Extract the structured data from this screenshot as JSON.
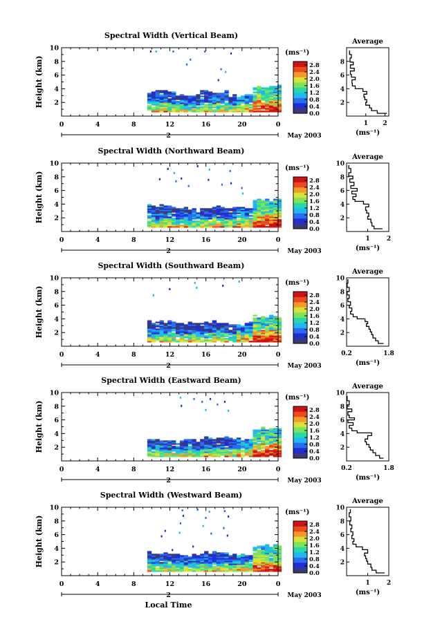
{
  "figure": {
    "month_label": "May 2003",
    "date_label": "2",
    "xlabel": "Local Time",
    "colorbar_unit": "(ms⁻¹)",
    "colorbar_ticks": [
      "0.0",
      "0.4",
      "0.8",
      "1.2",
      "1.6",
      "2.0",
      "2.4",
      "2.8"
    ],
    "colorbar_range": [
      0,
      3.0
    ],
    "colorbar_colors": [
      "#3a3a78",
      "#1f2fd0",
      "#2a6cf0",
      "#20b8ee",
      "#28d9a8",
      "#7fe35a",
      "#d9e23a",
      "#f59a2a",
      "#ea4a1e",
      "#cc1414"
    ],
    "average_title": "Average",
    "average_xlabel": "(ms⁻¹)"
  },
  "chart_data": [
    {
      "type": "heatmap",
      "title": "Spectral Width (Vertical Beam)",
      "ylabel": "Height (km)",
      "xlim": [
        0,
        24
      ],
      "ylim": [
        0,
        10
      ],
      "xticks": [
        "0",
        "4",
        "8",
        "12",
        "16",
        "20",
        "0"
      ],
      "yticks": [
        "2",
        "4",
        "6",
        "8",
        "10"
      ],
      "data_start_hour": 9.5,
      "layer_top_km": [
        3.6,
        3.0,
        3.5,
        2.9,
        4.3
      ],
      "sparse_points": [
        [
          9.8,
          9.6
        ],
        [
          10.4,
          9.6
        ],
        [
          12.3,
          9.6
        ],
        [
          15.8,
          9.6
        ],
        [
          18.7,
          9.3
        ],
        [
          14.2,
          8.4
        ],
        [
          13.8,
          7.7
        ],
        [
          17.6,
          7.0
        ],
        [
          18.1,
          6.6
        ],
        [
          17.3,
          5.4
        ]
      ],
      "average": {
        "xlim": [
          0,
          2.2
        ],
        "xticks": [
          "1",
          "2"
        ],
        "xtick_values": [
          1,
          2
        ],
        "yticks": [
          "2",
          "4",
          "6",
          "8"
        ],
        "profile": [
          [
            2.1,
            0.4
          ],
          [
            1.6,
            0.8
          ],
          [
            1.3,
            1.2
          ],
          [
            1.2,
            1.6
          ],
          [
            1.0,
            2.0
          ],
          [
            1.05,
            2.4
          ],
          [
            0.95,
            2.8
          ],
          [
            0.9,
            3.2
          ],
          [
            1.05,
            3.6
          ],
          [
            0.85,
            4.0
          ],
          [
            0.45,
            4.4
          ],
          [
            0.3,
            4.8
          ],
          [
            0.28,
            5.3
          ],
          [
            0.45,
            5.7
          ],
          [
            0.25,
            6.1
          ],
          [
            0.2,
            6.6
          ],
          [
            0.4,
            7.0
          ],
          [
            0.2,
            7.5
          ],
          [
            0.35,
            7.9
          ],
          [
            0.18,
            8.5
          ],
          [
            0.25,
            9.0
          ],
          [
            0.15,
            9.6
          ]
        ]
      }
    },
    {
      "type": "heatmap",
      "title": "Spectral Width (Northward Beam)",
      "ylabel": "Height (km)",
      "xlim": [
        0,
        24
      ],
      "ylim": [
        0,
        10
      ],
      "xticks": [
        "0",
        "4",
        "8",
        "12",
        "16",
        "20",
        "0"
      ],
      "yticks": [
        "2",
        "4",
        "6",
        "8",
        "10"
      ],
      "data_start_hour": 9.5,
      "layer_top_km": [
        3.6,
        3.2,
        3.4,
        3.3,
        4.6
      ],
      "sparse_points": [
        [
          11.7,
          9.3
        ],
        [
          12.4,
          8.7
        ],
        [
          15.0,
          9.7
        ],
        [
          16.3,
          9.2
        ],
        [
          18.6,
          9.0
        ],
        [
          10.8,
          7.8
        ],
        [
          12.6,
          7.5
        ],
        [
          13.2,
          7.9
        ],
        [
          16.2,
          7.7
        ],
        [
          18.7,
          7.2
        ],
        [
          14.0,
          6.8
        ],
        [
          17.7,
          7.0
        ],
        [
          19.9,
          6.5
        ],
        [
          20.0,
          5.7
        ]
      ],
      "average": {
        "xlim": [
          0,
          2
        ],
        "xticks": [
          "1",
          "2"
        ],
        "xtick_values": [
          1,
          2
        ],
        "yticks": [
          "2",
          "4",
          "6",
          "8",
          "10"
        ],
        "profile": [
          [
            1.7,
            0.4
          ],
          [
            1.3,
            0.8
          ],
          [
            1.2,
            1.3
          ],
          [
            1.15,
            1.8
          ],
          [
            1.0,
            2.2
          ],
          [
            1.05,
            2.7
          ],
          [
            0.95,
            3.1
          ],
          [
            0.9,
            3.6
          ],
          [
            1.05,
            4.0
          ],
          [
            0.8,
            4.4
          ],
          [
            0.4,
            4.7
          ],
          [
            0.3,
            5.1
          ],
          [
            0.45,
            5.5
          ],
          [
            0.25,
            5.9
          ],
          [
            0.5,
            6.3
          ],
          [
            0.2,
            6.7
          ],
          [
            0.35,
            7.2
          ],
          [
            0.15,
            7.7
          ],
          [
            0.3,
            8.1
          ],
          [
            0.1,
            8.6
          ],
          [
            0.2,
            9.2
          ],
          [
            0.1,
            9.7
          ]
        ]
      }
    },
    {
      "type": "heatmap",
      "title": "Spectral Width (Southward Beam)",
      "ylabel": "Height (km)",
      "xlim": [
        0,
        24
      ],
      "ylim": [
        0,
        10
      ],
      "xticks": [
        "0",
        "4",
        "8",
        "12",
        "16",
        "20",
        "0"
      ],
      "yticks": [
        "2",
        "4",
        "6",
        "8",
        "10"
      ],
      "data_start_hour": 9.5,
      "layer_top_km": [
        3.5,
        3.3,
        3.4,
        3.2,
        4.4
      ],
      "sparse_points": [
        [
          10.1,
          7.6
        ],
        [
          11.9,
          8.5
        ],
        [
          14.7,
          9.4
        ],
        [
          14.9,
          8.7
        ],
        [
          17.8,
          9.0
        ],
        [
          19.6,
          9.6
        ]
      ],
      "average": {
        "xlim": [
          0.2,
          1.8
        ],
        "xticks": [
          "0.2",
          "1.8"
        ],
        "xtick_values": [
          0.2,
          1.8
        ],
        "yticks": [
          "2",
          "4",
          "6",
          "8",
          "10"
        ],
        "profile": [
          [
            1.6,
            0.4
          ],
          [
            1.4,
            0.8
          ],
          [
            1.3,
            1.2
          ],
          [
            1.2,
            1.7
          ],
          [
            1.15,
            2.1
          ],
          [
            1.1,
            2.5
          ],
          [
            1.05,
            2.9
          ],
          [
            0.95,
            3.3
          ],
          [
            1.0,
            3.6
          ],
          [
            0.9,
            4.0
          ],
          [
            0.6,
            4.3
          ],
          [
            0.45,
            4.7
          ],
          [
            0.35,
            5.1
          ],
          [
            0.4,
            5.6
          ],
          [
            0.3,
            6.0
          ],
          [
            0.35,
            6.5
          ],
          [
            0.25,
            7.0
          ],
          [
            0.3,
            7.5
          ],
          [
            0.22,
            8.0
          ],
          [
            0.3,
            8.6
          ],
          [
            0.22,
            9.2
          ],
          [
            0.25,
            9.8
          ]
        ]
      }
    },
    {
      "type": "heatmap",
      "title": "Spectral Width (Eastward Beam)",
      "ylabel": "Height (km)",
      "xlim": [
        0,
        24
      ],
      "ylim": [
        0,
        10
      ],
      "xticks": [
        "0",
        "4",
        "8",
        "12",
        "16",
        "20",
        "0"
      ],
      "yticks": [
        "2",
        "4",
        "6",
        "8",
        "10"
      ],
      "data_start_hour": 9.5,
      "layer_top_km": [
        3.0,
        2.9,
        3.3,
        3.0,
        4.7
      ],
      "sparse_points": [
        [
          13.1,
          9.4
        ],
        [
          14.6,
          9.2
        ],
        [
          15.5,
          8.8
        ],
        [
          16.4,
          9.2
        ],
        [
          18.0,
          8.8
        ],
        [
          13.2,
          8.2
        ],
        [
          17.2,
          8.4
        ],
        [
          18.4,
          7.5
        ],
        [
          15.9,
          7.6
        ]
      ],
      "average": {
        "xlim": [
          0.2,
          1.8
        ],
        "xticks": [
          "0.2",
          "1.8"
        ],
        "xtick_values": [
          0.2,
          1.8
        ],
        "yticks": [
          "2",
          "4",
          "6",
          "8",
          "10"
        ],
        "profile": [
          [
            1.6,
            0.4
          ],
          [
            1.45,
            0.8
          ],
          [
            1.3,
            1.2
          ],
          [
            1.2,
            1.6
          ],
          [
            1.1,
            2.0
          ],
          [
            1.05,
            2.4
          ],
          [
            0.95,
            2.8
          ],
          [
            0.9,
            3.2
          ],
          [
            1.0,
            3.7
          ],
          [
            1.15,
            4.1
          ],
          [
            0.6,
            4.4
          ],
          [
            0.4,
            4.8
          ],
          [
            0.3,
            5.2
          ],
          [
            0.45,
            5.6
          ],
          [
            0.25,
            6.0
          ],
          [
            0.5,
            6.3
          ],
          [
            0.3,
            6.7
          ],
          [
            0.25,
            7.2
          ],
          [
            0.4,
            7.6
          ],
          [
            0.22,
            8.2
          ],
          [
            0.3,
            8.8
          ],
          [
            0.22,
            9.5
          ]
        ]
      }
    },
    {
      "type": "heatmap",
      "title": "Spectral Width (Westward Beam)",
      "ylabel": "Height (km)",
      "xlim": [
        0,
        24
      ],
      "ylim": [
        0,
        10
      ],
      "xticks": [
        "0",
        "4",
        "8",
        "12",
        "16",
        "20",
        "0"
      ],
      "yticks": [
        "2",
        "4",
        "6",
        "8",
        "10"
      ],
      "data_start_hour": 9.5,
      "layer_top_km": [
        3.3,
        3.0,
        3.3,
        3.0,
        4.3
      ],
      "sparse_points": [
        [
          13.3,
          9.7
        ],
        [
          13.4,
          8.9
        ],
        [
          13.1,
          7.8
        ],
        [
          13.0,
          6.4
        ],
        [
          15.0,
          9.8
        ],
        [
          16.3,
          9.5
        ],
        [
          15.9,
          8.6
        ],
        [
          15.6,
          7.4
        ],
        [
          16.5,
          6.3
        ],
        [
          18.0,
          9.6
        ],
        [
          18.4,
          8.8
        ],
        [
          17.9,
          7.1
        ],
        [
          18.3,
          6.0
        ],
        [
          11.4,
          6.7
        ],
        [
          11.0,
          5.9
        ],
        [
          14.5,
          4.4
        ],
        [
          12.2,
          3.9
        ]
      ],
      "average": {
        "xlim": [
          0,
          2
        ],
        "xticks": [
          "1",
          "2"
        ],
        "xtick_values": [
          1,
          2
        ],
        "yticks": [
          "2",
          "4",
          "6",
          "8",
          "10"
        ],
        "profile": [
          [
            1.8,
            0.4
          ],
          [
            1.4,
            0.8
          ],
          [
            1.2,
            1.2
          ],
          [
            1.15,
            1.7
          ],
          [
            1.0,
            2.1
          ],
          [
            0.95,
            2.5
          ],
          [
            0.9,
            2.9
          ],
          [
            0.85,
            3.3
          ],
          [
            1.0,
            3.8
          ],
          [
            0.75,
            4.2
          ],
          [
            0.45,
            4.6
          ],
          [
            0.3,
            5.0
          ],
          [
            0.35,
            5.4
          ],
          [
            0.25,
            5.9
          ],
          [
            0.3,
            6.4
          ],
          [
            0.2,
            6.9
          ],
          [
            0.25,
            7.4
          ],
          [
            0.15,
            8.0
          ],
          [
            0.2,
            8.6
          ],
          [
            0.12,
            9.2
          ],
          [
            0.18,
            9.7
          ]
        ]
      }
    }
  ]
}
